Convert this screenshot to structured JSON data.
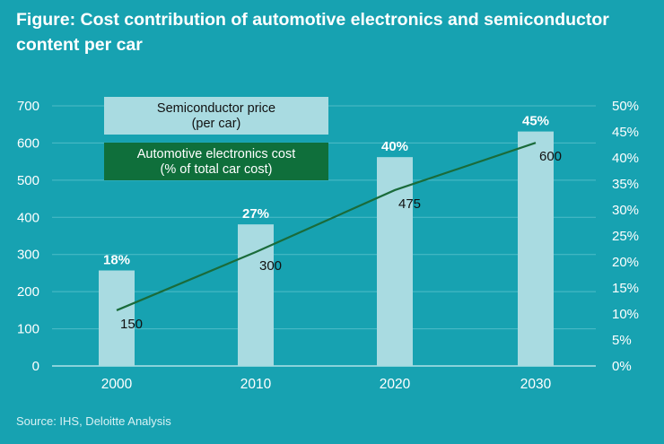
{
  "title": "Figure: Cost contribution of automotive electronics and semiconductor content per car",
  "source": "Source: IHS, Deloitte Analysis",
  "colors": {
    "background": "#17a2b1",
    "bar": "#a9dbe1",
    "line": "#1a6b3a",
    "legend_line_box": "#0f6f3b",
    "gridline": "#4fbcc8"
  },
  "chart_data": {
    "type": "bar",
    "categories": [
      "2000",
      "2010",
      "2020",
      "2030"
    ],
    "series": [
      {
        "name": "Semiconductor price\n(per car)",
        "type": "bar",
        "axis": "left",
        "values": [
          257,
          381,
          562,
          631
        ],
        "labels": [
          "18%",
          "27%",
          "40%",
          "45%"
        ]
      },
      {
        "name": "Automotive electronics cost\n(% of total car cost)",
        "type": "line",
        "axis": "right",
        "values": [
          10.7,
          21.9,
          33.8,
          42.9
        ],
        "labels": [
          "150",
          "300",
          "475",
          "600"
        ]
      }
    ],
    "left_axis": {
      "ylim": [
        0,
        700
      ],
      "ticks": [
        "0",
        "100",
        "200",
        "300",
        "400",
        "500",
        "600",
        "700"
      ]
    },
    "right_axis": {
      "ylim": [
        0,
        50
      ],
      "ticks": [
        "0%",
        "5%",
        "10%",
        "15%",
        "20%",
        "25%",
        "30%",
        "35%",
        "40%",
        "45%",
        "50%"
      ]
    },
    "legend": [
      {
        "label_lines": [
          "Semiconductor price",
          "(per car)"
        ],
        "style": "bar"
      },
      {
        "label_lines": [
          "Automotive electronics cost",
          "(% of total car cost)"
        ],
        "style": "line"
      }
    ],
    "legend_position": "top-left",
    "grid": true
  }
}
